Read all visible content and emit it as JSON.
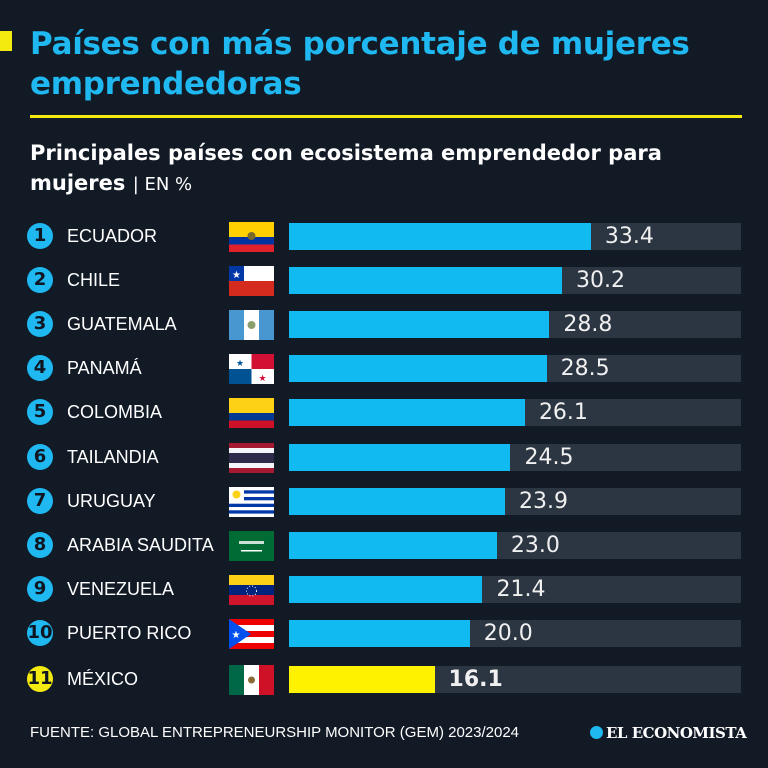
{
  "title": "Países con más porcentaje de mujeres emprendedoras",
  "subtitle": "Principales países con ecosistema emprendedor para mujeres",
  "unit": "| EN %",
  "source": "FUENTE: GLOBAL ENTREPRENEURSHIP MONITOR (GEM) 2023/2024",
  "logo": "EL ECONOMISTA",
  "colors": {
    "background": "#121a26",
    "accent": "#1fb8f0",
    "highlight": "#fff200",
    "track": "#2c3542"
  },
  "chart_data": {
    "type": "bar",
    "orientation": "horizontal",
    "xlim": [
      0,
      50
    ],
    "grid": false,
    "categories": [
      "ECUADOR",
      "CHILE",
      "GUATEMALA",
      "PANAMÁ",
      "COLOMBIA",
      "TAILANDIA",
      "URUGUAY",
      "ARABIA SAUDITA",
      "VENEZUELA",
      "PUERTO RICO",
      "MÉXICO"
    ],
    "ranks": [
      "1",
      "2",
      "3",
      "4",
      "5",
      "6",
      "7",
      "8",
      "9",
      "10",
      "11"
    ],
    "values": [
      33.4,
      30.2,
      28.8,
      28.5,
      26.1,
      24.5,
      23.9,
      23.0,
      21.4,
      20.0,
      16.1
    ],
    "labels": [
      "33.4",
      "30.2",
      "28.8",
      "28.5",
      "26.1",
      "24.5",
      "23.9",
      "23.0",
      "21.4",
      "20.0",
      "16.1"
    ],
    "flags": [
      "ecuador-flag",
      "chile-flag",
      "guatemala-flag",
      "panama-flag",
      "colombia-flag",
      "thailand-flag",
      "uruguay-flag",
      "saudi-arabia-flag",
      "venezuela-flag",
      "puerto-rico-flag",
      "mexico-flag"
    ],
    "highlighted": "MÉXICO"
  }
}
